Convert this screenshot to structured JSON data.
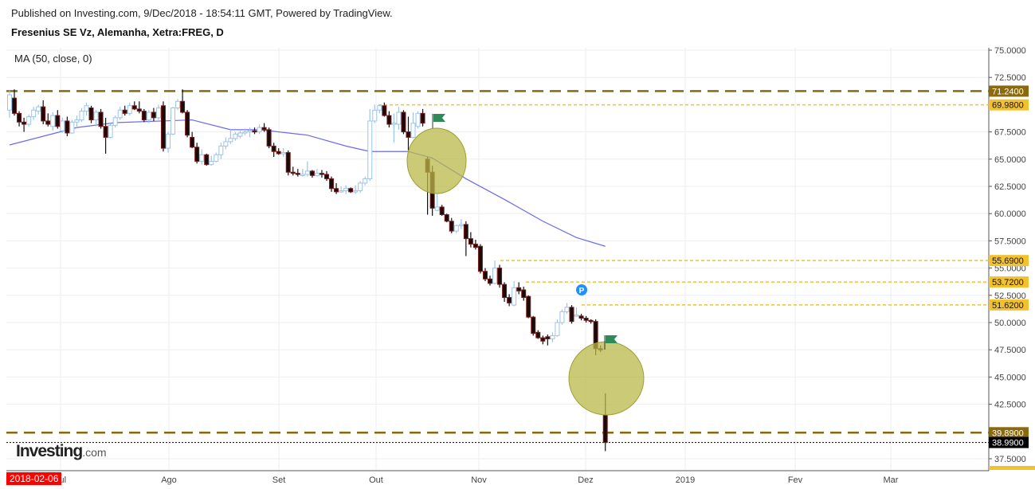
{
  "header": {
    "published": "Published on Investing.com, 9/Dec/2018 - 18:54:11 GMT, Powered by TradingView.",
    "title": "Fresenius SE Vz, Alemanha, Xetra:FREG, D"
  },
  "indicator_label": "MA (50, close, 0)",
  "logo": {
    "main": "Investing",
    "suffix": ".com"
  },
  "cursor_date": "2018-02-06",
  "colors": {
    "bear_body": "#1a0a0a",
    "bear_border": "#7a1a1a",
    "bull_border": "#9cc5ea",
    "ma": "#6a6af0",
    "level_dark": "#8a6a10",
    "level_light": "#f2c12e",
    "ellipse": "#b8b84a",
    "flag": "#2e8b57",
    "p_marker": "#1e90ff"
  },
  "chart_data": {
    "type": "candlestick",
    "title": "Fresenius SE Vz, Alemanha, Xetra:FREG, D",
    "ylim": [
      36.4,
      75.9
    ],
    "y_ticks": [
      "75.0000",
      "72.5000",
      "67.5000",
      "65.0000",
      "62.5000",
      "60.0000",
      "57.5000",
      "55.0000",
      "52.5000",
      "50.0000",
      "47.5000",
      "45.0000",
      "42.5000",
      "37.5000"
    ],
    "x_ticks": [
      "Jul",
      "Ago",
      "Set",
      "Out",
      "Nov",
      "Dez",
      "2019",
      "Fev",
      "Mar"
    ],
    "grid": true,
    "levels": [
      {
        "value": 71.24,
        "label": "71.2400",
        "style": "dashed-dark"
      },
      {
        "value": 69.98,
        "label": "69.9800",
        "style": "dotted-light"
      },
      {
        "value": 55.69,
        "label": "55.6900",
        "style": "dotted-light"
      },
      {
        "value": 53.72,
        "label": "53.7200",
        "style": "dotted-light"
      },
      {
        "value": 51.62,
        "label": "51.6200",
        "style": "dotted-light"
      },
      {
        "value": 39.89,
        "label": "39.8900",
        "style": "dashed-dark"
      },
      {
        "value": 38.99,
        "label": "38.9900",
        "style": "last-price"
      }
    ],
    "markers": {
      "p_label": "P"
    },
    "candles": [
      [
        "2018-06-18",
        69.5,
        71.3,
        68.8,
        70.9
      ],
      [
        "2018-06-19",
        70.6,
        71.4,
        69.0,
        69.2
      ],
      [
        "2018-06-20",
        69.2,
        69.4,
        68.0,
        68.4
      ],
      [
        "2018-06-21",
        68.4,
        68.8,
        67.5,
        68.2
      ],
      [
        "2018-06-22",
        68.2,
        69.1,
        68.0,
        68.9
      ],
      [
        "2018-06-25",
        68.9,
        69.8,
        68.6,
        69.5
      ],
      [
        "2018-06-26",
        69.4,
        70.0,
        69.1,
        69.8
      ],
      [
        "2018-06-27",
        69.8,
        70.4,
        68.2,
        68.5
      ],
      [
        "2018-06-28",
        68.5,
        69.2,
        68.0,
        68.2
      ],
      [
        "2018-06-29",
        68.0,
        69.3,
        67.6,
        69.0
      ],
      [
        "2018-07-02",
        69.0,
        69.5,
        67.8,
        68.0
      ],
      [
        "2018-07-03",
        67.6,
        68.8,
        67.4,
        68.5
      ],
      [
        "2018-07-04",
        68.5,
        68.9,
        67.1,
        67.4
      ],
      [
        "2018-07-05",
        67.4,
        68.6,
        67.3,
        68.4
      ],
      [
        "2018-07-06",
        68.4,
        69.0,
        68.0,
        68.6
      ],
      [
        "2018-07-09",
        68.6,
        69.7,
        68.4,
        69.4
      ],
      [
        "2018-07-10",
        69.4,
        70.2,
        69.0,
        69.9
      ],
      [
        "2018-07-11",
        69.7,
        69.9,
        68.3,
        68.6
      ],
      [
        "2018-07-12",
        68.6,
        69.5,
        68.0,
        69.3
      ],
      [
        "2018-07-13",
        69.3,
        69.6,
        67.8,
        68.0
      ],
      [
        "2018-07-16",
        68.0,
        68.8,
        65.5,
        67.0
      ],
      [
        "2018-07-17",
        67.0,
        68.3,
        66.9,
        68.1
      ],
      [
        "2018-07-18",
        68.1,
        69.0,
        67.9,
        68.8
      ],
      [
        "2018-07-19",
        68.8,
        69.8,
        68.6,
        69.5
      ],
      [
        "2018-07-20",
        69.5,
        69.9,
        69.0,
        69.2
      ],
      [
        "2018-07-23",
        69.2,
        70.2,
        69.0,
        69.9
      ],
      [
        "2018-07-24",
        69.9,
        70.3,
        69.5,
        69.6
      ],
      [
        "2018-07-25",
        69.6,
        70.3,
        69.2,
        69.4
      ],
      [
        "2018-07-26",
        69.4,
        69.6,
        68.4,
        68.6
      ],
      [
        "2018-07-27",
        68.6,
        69.5,
        68.3,
        69.3
      ],
      [
        "2018-07-30",
        69.3,
        69.7,
        68.5,
        68.8
      ],
      [
        "2018-07-31",
        68.8,
        70.0,
        68.6,
        69.7
      ],
      [
        "2018-08-01",
        69.9,
        70.3,
        65.7,
        66.0
      ],
      [
        "2018-08-02",
        66.0,
        67.5,
        65.6,
        67.3
      ],
      [
        "2018-08-03",
        67.3,
        69.8,
        67.2,
        69.7
      ],
      [
        "2018-08-06",
        69.7,
        70.5,
        69.5,
        70.3
      ],
      [
        "2018-08-07",
        70.3,
        71.4,
        69.2,
        69.3
      ],
      [
        "2018-08-08",
        69.3,
        69.5,
        67.0,
        67.2
      ],
      [
        "2018-08-09",
        67.0,
        67.5,
        66.0,
        66.1
      ],
      [
        "2018-08-10",
        66.1,
        66.5,
        64.6,
        64.8
      ],
      [
        "2018-08-13",
        64.8,
        65.9,
        64.5,
        65.4
      ],
      [
        "2018-08-14",
        65.4,
        65.5,
        64.4,
        64.5
      ],
      [
        "2018-08-15",
        64.5,
        65.3,
        64.4,
        64.8
      ],
      [
        "2018-08-16",
        64.8,
        65.6,
        64.7,
        65.4
      ],
      [
        "2018-08-17",
        65.4,
        66.5,
        65.0,
        66.2
      ],
      [
        "2018-08-20",
        66.2,
        67.0,
        65.9,
        66.6
      ],
      [
        "2018-08-21",
        66.6,
        67.8,
        66.4,
        66.9
      ],
      [
        "2018-08-22",
        66.9,
        67.5,
        66.7,
        67.3
      ],
      [
        "2018-08-23",
        67.1,
        67.6,
        66.9,
        67.4
      ],
      [
        "2018-08-24",
        67.4,
        67.8,
        67.2,
        67.5
      ],
      [
        "2018-08-27",
        67.5,
        67.9,
        67.0,
        67.6
      ],
      [
        "2018-08-28",
        67.6,
        67.9,
        67.3,
        67.5
      ],
      [
        "2018-08-29",
        67.5,
        68.2,
        67.3,
        67.9
      ],
      [
        "2018-08-30",
        67.9,
        68.3,
        67.5,
        67.7
      ],
      [
        "2018-08-31",
        67.7,
        67.9,
        66.0,
        66.2
      ],
      [
        "2018-09-03",
        66.2,
        66.5,
        65.2,
        65.7
      ],
      [
        "2018-09-04",
        65.7,
        66.0,
        65.4,
        65.5
      ],
      [
        "2018-09-05",
        65.5,
        66.0,
        65.2,
        65.6
      ],
      [
        "2018-09-06",
        65.6,
        65.8,
        63.5,
        63.8
      ],
      [
        "2018-09-07",
        63.8,
        64.3,
        63.5,
        63.7
      ],
      [
        "2018-09-10",
        63.7,
        64.1,
        63.4,
        63.6
      ],
      [
        "2018-09-11",
        63.6,
        64.1,
        63.4,
        63.6
      ],
      [
        "2018-09-12",
        63.6,
        64.8,
        63.4,
        63.9
      ],
      [
        "2018-09-13",
        63.9,
        64.0,
        63.3,
        63.5
      ],
      [
        "2018-09-14",
        63.5,
        64.1,
        63.4,
        63.7
      ],
      [
        "2018-09-17",
        63.7,
        64.0,
        63.3,
        63.6
      ],
      [
        "2018-09-18",
        63.6,
        63.9,
        63.0,
        63.2
      ],
      [
        "2018-09-19",
        63.2,
        63.4,
        62.0,
        62.3
      ],
      [
        "2018-09-20",
        62.3,
        62.8,
        61.8,
        62.0
      ],
      [
        "2018-09-21",
        62.0,
        62.5,
        61.9,
        62.1
      ],
      [
        "2018-09-24",
        62.1,
        62.6,
        61.8,
        62.3
      ],
      [
        "2018-09-25",
        62.3,
        62.4,
        61.9,
        62.0
      ],
      [
        "2018-09-26",
        62.0,
        62.6,
        61.8,
        62.1
      ],
      [
        "2018-09-27",
        62.1,
        63.0,
        61.9,
        62.8
      ],
      [
        "2018-09-28",
        62.8,
        63.4,
        62.6,
        63.2
      ],
      [
        "2018-10-01",
        63.2,
        69.6,
        63.0,
        68.5
      ],
      [
        "2018-10-02",
        68.5,
        70.0,
        68.3,
        69.5
      ],
      [
        "2018-10-03",
        69.5,
        70.0,
        69.2,
        69.9
      ],
      [
        "2018-10-04",
        69.9,
        70.2,
        68.9,
        69.0
      ],
      [
        "2018-10-05",
        69.0,
        69.4,
        67.9,
        68.2
      ],
      [
        "2018-10-08",
        68.2,
        69.2,
        66.5,
        68.3
      ],
      [
        "2018-10-09",
        68.2,
        69.8,
        67.7,
        69.3
      ],
      [
        "2018-10-10",
        69.3,
        69.5,
        67.3,
        67.5
      ],
      [
        "2018-10-11",
        67.5,
        68.9,
        65.8,
        67.0
      ],
      [
        "2018-10-12",
        67.0,
        69.3,
        66.9,
        68.3
      ],
      [
        "2018-10-15",
        68.0,
        69.4,
        67.8,
        69.2
      ],
      [
        "2018-10-16",
        69.2,
        69.6,
        68.0,
        68.3
      ],
      [
        "2018-10-17",
        65.0,
        65.2,
        59.9,
        63.8
      ],
      [
        "2018-10-18",
        63.8,
        64.4,
        59.8,
        60.5
      ],
      [
        "2018-10-19",
        60.3,
        61.8,
        60.2,
        60.6
      ],
      [
        "2018-10-22",
        60.6,
        60.8,
        59.8,
        59.9
      ],
      [
        "2018-10-23",
        59.9,
        60.0,
        59.2,
        59.3
      ],
      [
        "2018-10-24",
        59.3,
        59.6,
        58.2,
        58.4
      ],
      [
        "2018-10-25",
        58.4,
        59.0,
        58.2,
        58.9
      ],
      [
        "2018-10-26",
        58.9,
        59.5,
        58.6,
        59.0
      ],
      [
        "2018-10-29",
        59.0,
        59.3,
        56.1,
        57.7
      ],
      [
        "2018-10-30",
        57.7,
        58.3,
        56.9,
        57.2
      ],
      [
        "2018-10-31",
        57.2,
        57.6,
        56.7,
        56.9
      ],
      [
        "2018-11-01",
        57.0,
        57.2,
        54.5,
        54.7
      ],
      [
        "2018-11-02",
        54.7,
        55.0,
        53.8,
        54.0
      ],
      [
        "2018-11-05",
        54.0,
        54.3,
        53.4,
        53.6
      ],
      [
        "2018-11-06",
        53.6,
        55.7,
        53.5,
        55.0
      ],
      [
        "2018-11-07",
        55.0,
        55.3,
        53.2,
        53.5
      ],
      [
        "2018-11-08",
        53.5,
        53.7,
        51.9,
        52.3
      ],
      [
        "2018-11-09",
        52.3,
        52.6,
        51.5,
        51.8
      ],
      [
        "2018-11-12",
        51.6,
        53.8,
        51.5,
        53.2
      ],
      [
        "2018-11-13",
        53.2,
        53.7,
        52.6,
        52.9
      ],
      [
        "2018-11-14",
        53.0,
        53.3,
        52.0,
        52.3
      ],
      [
        "2018-11-15",
        52.4,
        52.5,
        50.4,
        50.5
      ],
      [
        "2018-11-16",
        50.5,
        50.6,
        48.8,
        49.0
      ],
      [
        "2018-11-19",
        49.1,
        49.3,
        48.5,
        48.6
      ],
      [
        "2018-11-20",
        48.6,
        48.8,
        48.0,
        48.3
      ],
      [
        "2018-11-21",
        48.7,
        48.9,
        47.9,
        48.5
      ],
      [
        "2018-11-22",
        48.5,
        49.1,
        48.2,
        48.8
      ],
      [
        "2018-11-23",
        48.8,
        50.3,
        48.7,
        50.0
      ],
      [
        "2018-11-26",
        50.0,
        51.2,
        49.8,
        51.0
      ],
      [
        "2018-11-27",
        51.0,
        51.8,
        50.8,
        51.4
      ],
      [
        "2018-11-28",
        51.4,
        51.6,
        49.9,
        50.1
      ],
      [
        "2018-11-29",
        50.7,
        51.4,
        50.5,
        50.7
      ],
      [
        "2018-11-30",
        50.6,
        50.8,
        50.2,
        50.4
      ],
      [
        "2018-12-03",
        50.4,
        50.6,
        50.0,
        50.2
      ],
      [
        "2018-12-04",
        50.2,
        50.3,
        49.9,
        50.1
      ],
      [
        "2018-12-05",
        50.1,
        50.3,
        47.0,
        47.6
      ],
      [
        "2018-12-06",
        47.6,
        47.9,
        47.3,
        47.5
      ],
      [
        "2018-12-07",
        41.5,
        43.5,
        38.2,
        38.99
      ]
    ],
    "ma50": [
      [
        "2018-06-18",
        66.3
      ],
      [
        "2018-07-06",
        67.9
      ],
      [
        "2018-07-18",
        68.35
      ],
      [
        "2018-08-09",
        68.6
      ],
      [
        "2018-08-21",
        67.7
      ],
      [
        "2018-08-29",
        67.7
      ],
      [
        "2018-09-12",
        67.2
      ],
      [
        "2018-09-24",
        66.2
      ],
      [
        "2018-10-01",
        65.7
      ],
      [
        "2018-10-11",
        65.7
      ],
      [
        "2018-10-18",
        65.1
      ],
      [
        "2018-10-29",
        63.2
      ],
      [
        "2018-11-08",
        61.3
      ],
      [
        "2018-11-20",
        59.3
      ],
      [
        "2018-11-29",
        57.8
      ],
      [
        "2018-12-07",
        57.0
      ]
    ]
  }
}
